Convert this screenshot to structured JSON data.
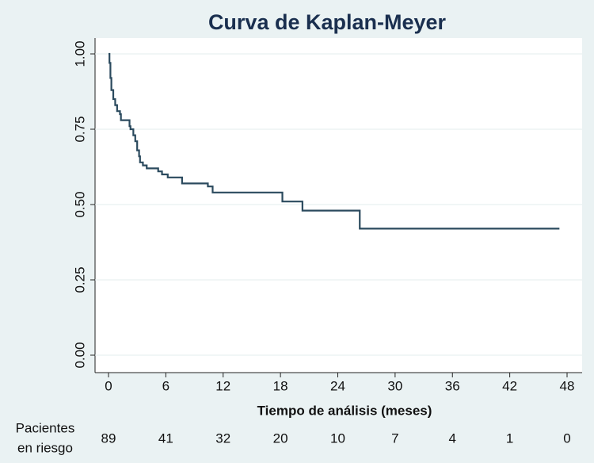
{
  "chart_data": {
    "type": "step",
    "title": "Curva de Kaplan-Meyer",
    "x_label": "Tiempo de análisis (meses)",
    "x": [
      0,
      0.1,
      0.2,
      0.3,
      0.5,
      0.7,
      0.9,
      1.2,
      1.3,
      2.2,
      2.3,
      2.6,
      2.8,
      3.0,
      3.2,
      3.3,
      3.6,
      4.0,
      5.2,
      5.6,
      6.2,
      7.7,
      10.4,
      10.9,
      18.2,
      20.3,
      26.3,
      47.2
    ],
    "values": [
      1.0,
      0.97,
      0.92,
      0.88,
      0.85,
      0.83,
      0.81,
      0.8,
      0.78,
      0.76,
      0.75,
      0.73,
      0.71,
      0.68,
      0.66,
      0.64,
      0.63,
      0.62,
      0.61,
      0.6,
      0.59,
      0.57,
      0.56,
      0.54,
      0.51,
      0.48,
      0.42,
      0.42
    ],
    "color": "#2b4a5e",
    "xlim": [
      0,
      48
    ],
    "xticks": [
      0,
      6,
      12,
      18,
      24,
      30,
      36,
      42,
      48
    ],
    "ylim": [
      0,
      1
    ],
    "yticks": [
      {
        "value": 0,
        "label": "0.00"
      },
      {
        "value": 0.25,
        "label": "0.25"
      },
      {
        "value": 0.5,
        "label": "0.50"
      },
      {
        "value": 0.75,
        "label": "0.75"
      },
      {
        "value": 1,
        "label": "1.00"
      }
    ],
    "grid": true,
    "at_risk_label": [
      "Pacientes",
      "en riesgo"
    ],
    "at_risk": [
      89,
      41,
      32,
      20,
      10,
      7,
      4,
      1,
      0
    ]
  }
}
